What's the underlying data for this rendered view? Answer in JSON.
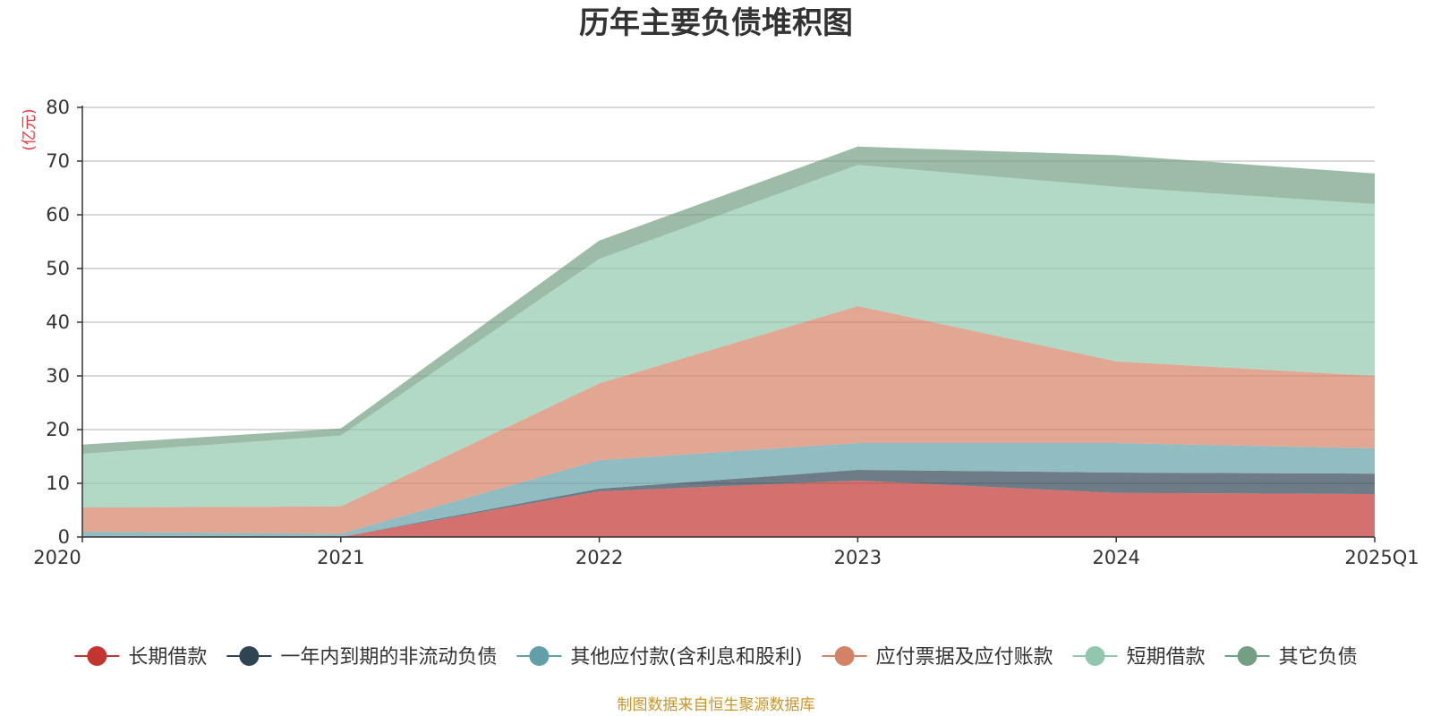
{
  "chart_data": {
    "type": "area",
    "stacked": true,
    "title": "历年主要负债堆积图",
    "unit_label": "(亿元)",
    "categories": [
      "2020",
      "2021",
      "2022",
      "2023",
      "2024",
      "2025Q1"
    ],
    "ylim": [
      0,
      80
    ],
    "yticks": [
      0,
      10,
      20,
      30,
      40,
      50,
      60,
      70,
      80
    ],
    "grid": true,
    "legend_position": "bottom",
    "series": [
      {
        "name": "长期借款",
        "color": "#c23531",
        "values": [
          0,
          0,
          8.5,
          10.5,
          8.2,
          8.0
        ]
      },
      {
        "name": "一年内到期的非流动负债",
        "color": "#2f4554",
        "values": [
          0,
          0,
          0.5,
          2.0,
          3.8,
          3.8
        ]
      },
      {
        "name": "其他应付款(含利息和股利)",
        "color": "#61a0a8",
        "values": [
          1.0,
          0.6,
          5.3,
          5.0,
          5.5,
          4.7
        ]
      },
      {
        "name": "应付票据及应付账款",
        "color": "#d48265",
        "values": [
          4.5,
          5.1,
          14.3,
          25.5,
          15.2,
          13.5
        ]
      },
      {
        "name": "短期借款",
        "color": "#91c7ae",
        "values": [
          10.0,
          13.2,
          23.2,
          26.3,
          32.5,
          32.0
        ]
      },
      {
        "name": "其它负债",
        "color": "#749f83",
        "values": [
          1.7,
          1.3,
          3.4,
          3.4,
          5.9,
          5.7
        ]
      }
    ],
    "source_note": "制图数据来自恒生聚源数据库"
  }
}
